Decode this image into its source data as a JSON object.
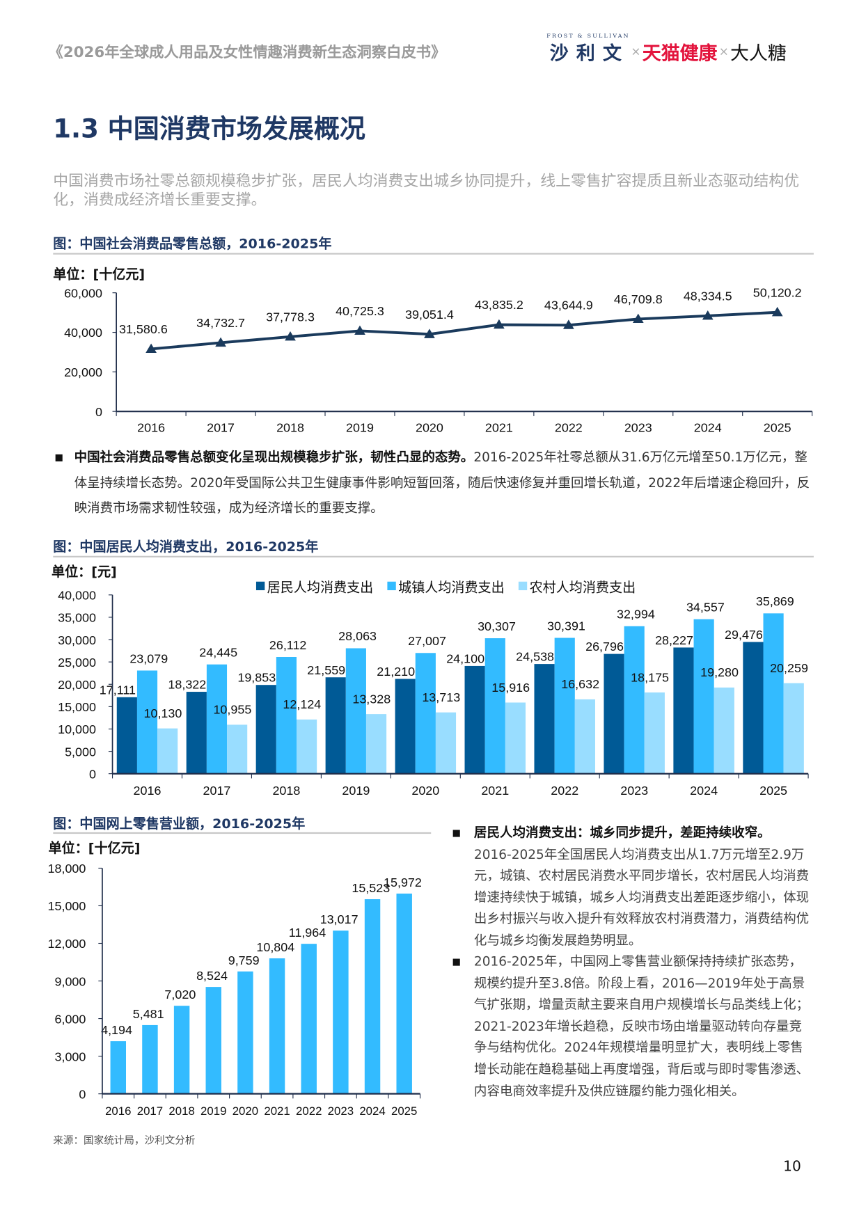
{
  "header": {
    "doc_title": "《2026年全球成人用品及女性情趣消费新生态洞察白皮书》",
    "logo": {
      "frost_sullivan": "FROST & SULLIVAN",
      "fs_cn": "沙利文",
      "sep": "×",
      "tmall": "天猫健康",
      "daren": "大人糖"
    }
  },
  "section_title": "1.3 中国消费市场发展概况",
  "subtitle": "中国消费市场社零总额规模稳步扩张，居民人均消费支出城乡协同提升，线上零售扩容提质且新业态驱动结构优化，消费成经济增长重要支撑。",
  "figure1": {
    "title": "图：中国社会消费品零售总额，2016-2025年",
    "unit": "单位：[十亿元]"
  },
  "bullet1": {
    "bold": "中国社会消费品零售总额变化呈现出规模稳步扩张，韧性凸显的态势。",
    "text": "2016-2025年社零总额从31.6万亿元增至50.1万亿元，整体呈持续增长态势。2020年受国际公共卫生健康事件影响短暂回落，随后快速修复并重回增长轨道，2022年后增速企稳回升，反映消费市场需求韧性较强，成为经济增长的重要支撑。"
  },
  "figure2": {
    "title": "图：中国居民人均消费支出，2016-2025年",
    "unit": "单位：[元]"
  },
  "figure3": {
    "title": "图：中国网上零售营业额，2016-2025年",
    "unit": "单位：[十亿元]"
  },
  "right_bullets": [
    {
      "bold": "居民人均消费支出：城乡同步提升，差距持续收窄。",
      "text": "2016-2025年全国居民人均消费支出从1.7万元增至2.9万元，城镇、农村居民消费水平同步增长，农村居民人均消费增速持续快于城镇，城乡人均消费支出差距逐步缩小，体现出乡村振兴与收入提升有效释放农村消费潜力，消费结构优化与城乡均衡发展趋势明显。"
    },
    {
      "bold": "",
      "text": "2016-2025年，中国网上零售营业额保持持续扩张态势，规模约提升至3.8倍。阶段上看，2016—2019年处于高景气扩张期，增量贡献主要来自用户规模增长与品类线上化；2021-2023年增长趋稳，反映市场由增量驱动转向存量竞争与结构优化。2024年规模增量明显扩大，表明线上零售增长动能在趋稳基础上再度增强，背后或与即时零售渗透、内容电商效率提升及供应链履约能力强化相关。"
    }
  ],
  "source": "来源：国家统计局，沙利文分析",
  "page_number": "10",
  "chart_data": [
    {
      "type": "line",
      "categories": [
        "2016",
        "2017",
        "2018",
        "2019",
        "2020",
        "2021",
        "2022",
        "2023",
        "2024",
        "2025"
      ],
      "values": [
        31580.6,
        34732.7,
        37778.3,
        40725.3,
        39051.4,
        43835.2,
        43644.9,
        46709.8,
        48334.5,
        50120.2
      ],
      "labels": [
        "31,580.6",
        "34,732.7",
        "37,778.3",
        "40,725.3",
        "39,051.4",
        "43,835.2",
        "43,644.9",
        "46,709.8",
        "48,334.5",
        "50,120.2"
      ],
      "ylim": [
        0,
        60000
      ],
      "yticks": [
        "0",
        "20,000",
        "40,000",
        "60,000"
      ],
      "color": "#1a3a5c",
      "grid": false
    },
    {
      "type": "bar",
      "categories": [
        "2016",
        "2017",
        "2018",
        "2019",
        "2020",
        "2021",
        "2022",
        "2023",
        "2024",
        "2025"
      ],
      "series": [
        {
          "name": "居民人均消费支出",
          "color": "#005a96",
          "values": [
            17111,
            18322,
            19853,
            21559,
            21210,
            24100,
            24538,
            26796,
            28227,
            29476
          ],
          "labels": [
            "17,111",
            "18,322",
            "19,853",
            "21,559",
            "21,210",
            "24,100",
            "24,538",
            "26,796",
            "28,227",
            "29,476"
          ]
        },
        {
          "name": "城镇人均消费支出",
          "color": "#33bbff",
          "values": [
            23079,
            24445,
            26112,
            28063,
            27007,
            30307,
            30391,
            32994,
            34557,
            35869
          ],
          "labels": [
            "23,079",
            "24,445",
            "26,112",
            "28,063",
            "27,007",
            "30,307",
            "30,391",
            "32,994",
            "34,557",
            "35,869"
          ]
        },
        {
          "name": "农村人均消费支出",
          "color": "#99ddff",
          "values": [
            10130,
            10955,
            12124,
            13328,
            13713,
            15916,
            16632,
            18175,
            19280,
            20259
          ],
          "labels": [
            "10,130",
            "10,955",
            "12,124",
            "13,328",
            "13,713",
            "15,916",
            "16,632",
            "18,175",
            "19,280",
            "20,259"
          ]
        }
      ],
      "ylim": [
        0,
        40000
      ],
      "yticks": [
        "0",
        "5,000",
        "10,000",
        "15,000",
        "20,000",
        "25,000",
        "30,000",
        "35,000",
        "40,000"
      ],
      "legend": "top",
      "grid": false
    },
    {
      "type": "bar",
      "categories": [
        "2016",
        "2017",
        "2018",
        "2019",
        "2020",
        "2021",
        "2022",
        "2023",
        "2024",
        "2025"
      ],
      "values": [
        4194,
        5481,
        7020,
        8524,
        9759,
        10804,
        11964,
        13017,
        15523,
        15972
      ],
      "labels": [
        "4,194",
        "5,481",
        "7,020",
        "8,524",
        "9,759",
        "10,804",
        "11,964",
        "13,017",
        "15,523",
        "15,972"
      ],
      "ylim": [
        0,
        18000
      ],
      "yticks": [
        "0",
        "3,000",
        "6,000",
        "9,000",
        "12,000",
        "15,000",
        "18,000"
      ],
      "color": "#33bbff",
      "grid": false
    }
  ]
}
